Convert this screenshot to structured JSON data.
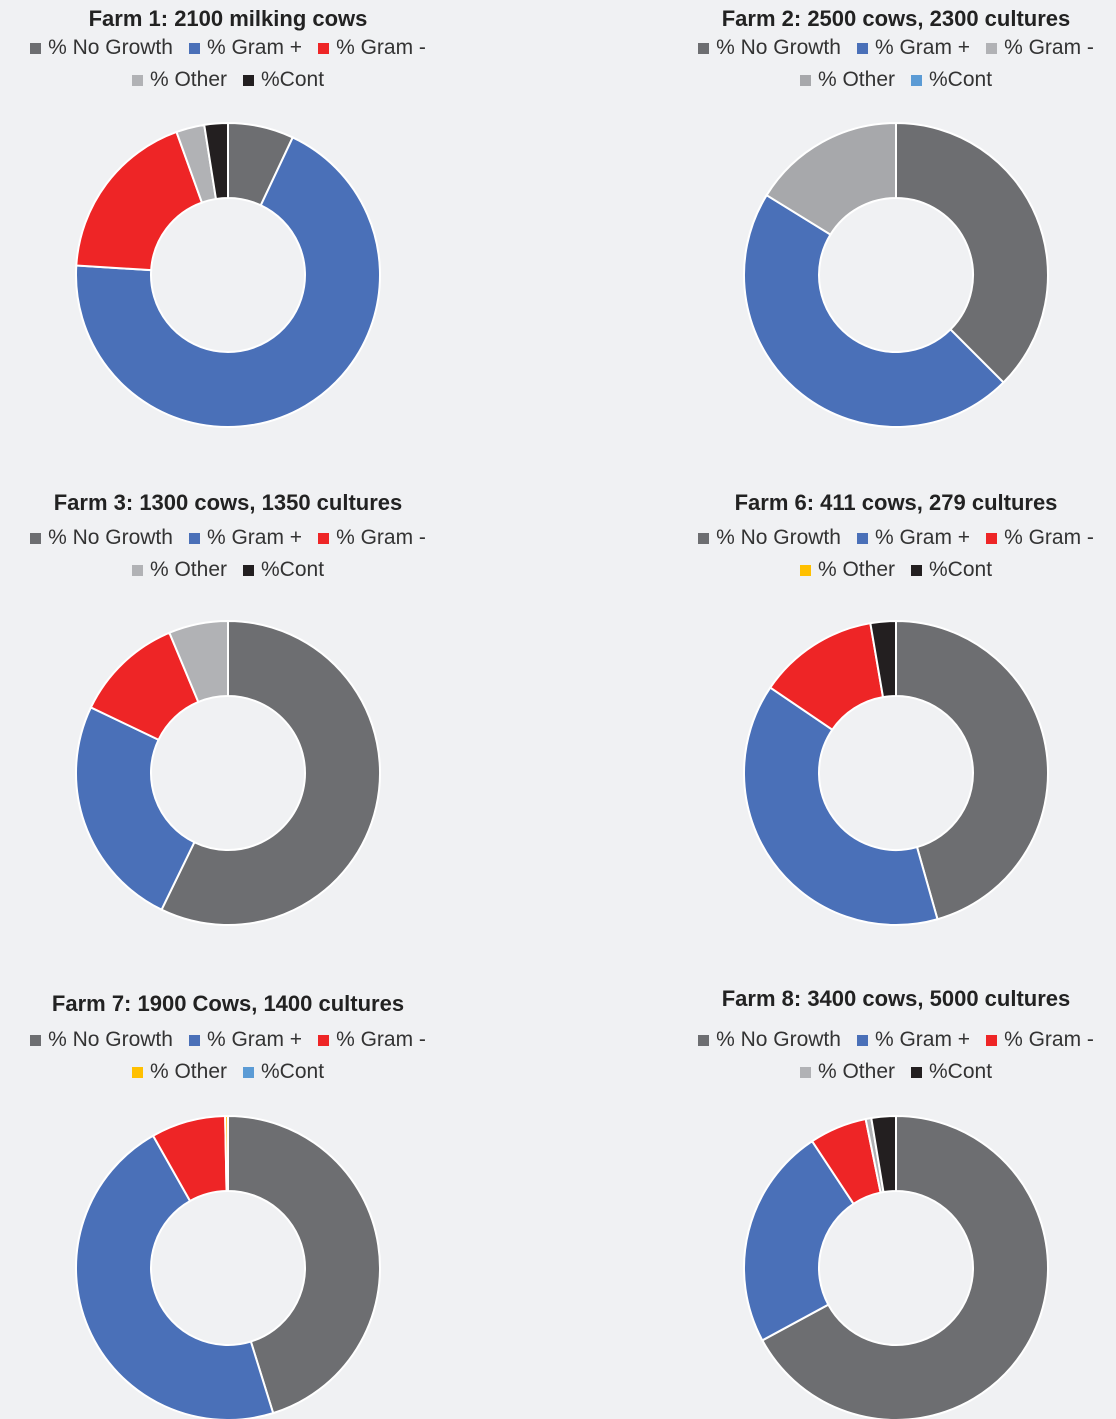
{
  "chart_data": [
    {
      "type": "pie",
      "title": "Farm 1:  2100 milking cows",
      "categories": [
        "% No Growth",
        "% Gram +",
        "% Gram -",
        "% Other",
        "%Cont"
      ],
      "values": [
        7,
        69,
        18.5,
        3,
        2.5
      ],
      "colors": [
        "#6d6e71",
        "#4a70b8",
        "#ee2526",
        "#b1b2b5",
        "#231f20"
      ]
    },
    {
      "type": "pie",
      "title": "Farm 2: 2500 cows, 2300 cultures",
      "categories": [
        "% No Growth",
        "% Gram +",
        "% Gram -",
        "% Other",
        "%Cont"
      ],
      "values": [
        37.5,
        46.3,
        0,
        16.2,
        0
      ],
      "colors": [
        "#6d6e71",
        "#4a70b8",
        "#b1b2b5",
        "#a7a8ab",
        "#5b9bd5"
      ]
    },
    {
      "type": "pie",
      "title": "Farm 3:  1300 cows, 1350 cultures",
      "categories": [
        "% No Growth",
        "% Gram +",
        "% Gram -",
        "% Other",
        "%Cont"
      ],
      "values": [
        57.2,
        24.9,
        11.6,
        6.3,
        0
      ],
      "colors": [
        "#6d6e71",
        "#4a70b8",
        "#ee2526",
        "#b1b2b5",
        "#231f20"
      ]
    },
    {
      "type": "pie",
      "title": "Farm 6:  411 cows, 279 cultures",
      "categories": [
        "% No Growth",
        "% Gram +",
        "% Gram -",
        "% Other",
        "%Cont"
      ],
      "values": [
        45.6,
        38.9,
        12.8,
        0,
        2.7
      ],
      "colors": [
        "#6d6e71",
        "#4a70b8",
        "#ee2526",
        "#ffc000",
        "#231f20"
      ]
    },
    {
      "type": "pie",
      "title": "Farm 7:  1900 Cows, 1400 cultures",
      "categories": [
        "% No Growth",
        "% Gram +",
        "% Gram -",
        "% Other",
        "%Cont"
      ],
      "values": [
        45.2,
        46.6,
        7.9,
        0.3,
        0
      ],
      "colors": [
        "#6d6e71",
        "#4a70b8",
        "#ee2526",
        "#ffc000",
        "#5b9bd5"
      ]
    },
    {
      "type": "pie",
      "title": "Farm 8:  3400 cows,  5000 cultures",
      "categories": [
        "% No Growth",
        "% Gram +",
        "% Gram -",
        "% Other",
        "%Cont"
      ],
      "values": [
        67.1,
        23.6,
        6.1,
        0.6,
        2.6
      ],
      "colors": [
        "#6d6e71",
        "#4a70b8",
        "#ee2526",
        "#b1b2b5",
        "#231f20"
      ]
    }
  ]
}
